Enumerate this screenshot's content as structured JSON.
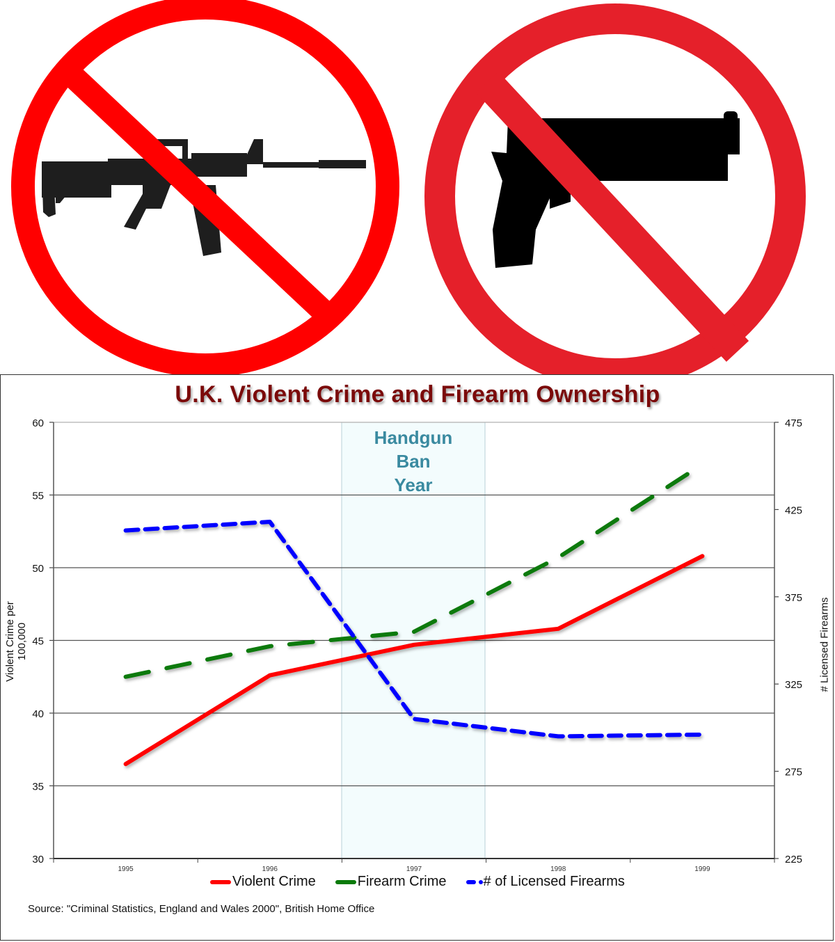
{
  "images": {
    "left_sign": {
      "icon": "no-assault-rifle-sign",
      "ring_color": "#ff0000",
      "silhouette_color": "#1e1e1e"
    },
    "right_sign": {
      "icon": "no-handgun-sign",
      "ring_color": "#e5202a",
      "silhouette_color": "#000000"
    }
  },
  "chart_data": {
    "type": "line",
    "title": "U.K. Violent Crime and Firearm Ownership",
    "categories": [
      "1995",
      "1996",
      "1997",
      "1998",
      "1999"
    ],
    "xlabel": "",
    "ylabel": "Violent Crime per 100,000",
    "ylabel_right": "# Licensed Firearms",
    "ylim": [
      30,
      60
    ],
    "yticks": [
      30,
      35,
      40,
      45,
      50,
      55,
      60
    ],
    "ylim_right": [
      225,
      475
    ],
    "yticks_right": [
      225,
      275,
      325,
      375,
      425,
      475
    ],
    "grid": true,
    "legend_position": "bottom",
    "series": [
      {
        "name": "Violent Crime",
        "axis": "left",
        "color": "#ff0000",
        "style": "solid",
        "values": [
          36.5,
          42.6,
          44.7,
          45.8,
          50.8
        ]
      },
      {
        "name": "Firearm Crime",
        "axis": "left",
        "color": "#0a7a0a",
        "style": "long-dash",
        "values": [
          42.5,
          44.6,
          45.6,
          50.7,
          57.1
        ]
      },
      {
        "name": "# of Licensed Firearms",
        "axis": "right",
        "color": "#0000ff",
        "style": "dash",
        "values": [
          413,
          418,
          305,
          295,
          296
        ]
      }
    ],
    "annotations": [
      {
        "text": "Handgun Ban Year",
        "lines": [
          "Handgun",
          "Ban",
          "Year"
        ],
        "category": "1997",
        "shaded": true,
        "color": "#3a8aa0"
      }
    ],
    "source": "Source: \"Criminal Statistics, England and Wales 2000\", British Home Office"
  }
}
